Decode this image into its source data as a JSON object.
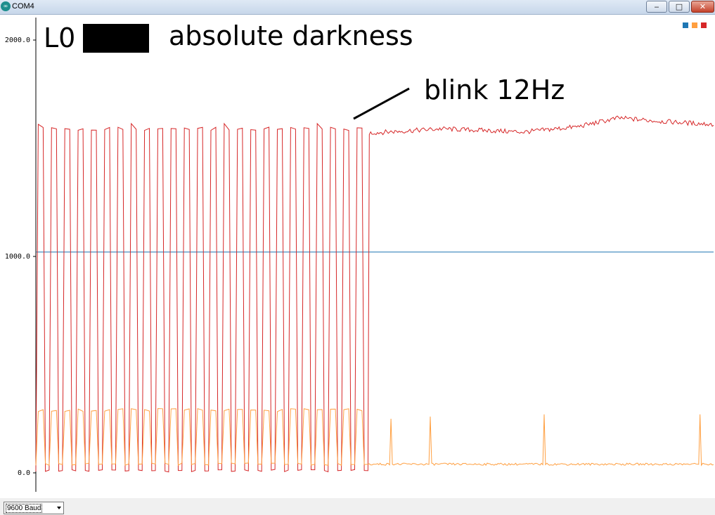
{
  "window": {
    "title": "COM4",
    "icon": "arduino-icon",
    "minimize": "‒",
    "maximize": "□",
    "close": "✕"
  },
  "annotations": {
    "label": "L0",
    "condition": "absolute darkness",
    "note": "blink 12Hz"
  },
  "status": {
    "baud": "9600 Baud"
  },
  "colors": {
    "series_blue": "#1f77b4",
    "series_orange": "#ff9f40",
    "series_red": "#d62728"
  },
  "chart_data": {
    "type": "line",
    "ylim": [
      0,
      2000
    ],
    "y_ticks": [
      "0.0",
      "1000.0",
      "2000.0"
    ],
    "grid": false,
    "legend": "top-right",
    "x_points": 500,
    "series": [
      {
        "color": "#1f77b4",
        "constant": 1020
      },
      {
        "color": "#d62728",
        "blink": {
          "count": 25,
          "start": 0,
          "end": 245,
          "high": 1590,
          "low": 10
        },
        "steady": {
          "segments": [
            [
              245,
              1570
            ],
            [
              300,
              1590
            ],
            [
              360,
              1575
            ],
            [
              400,
              1600
            ],
            [
              430,
              1640
            ],
            [
              460,
              1625
            ],
            [
              500,
              1610
            ]
          ]
        }
      },
      {
        "color": "#ff9f40",
        "blink": {
          "count": 25,
          "start": 0,
          "end": 245,
          "high": 290,
          "low": 40
        },
        "steady": {
          "level": 40,
          "spikes": [
            [
              262,
              250
            ],
            [
              291,
              260
            ],
            [
              375,
              270
            ],
            [
              490,
              270
            ]
          ]
        }
      }
    ]
  }
}
